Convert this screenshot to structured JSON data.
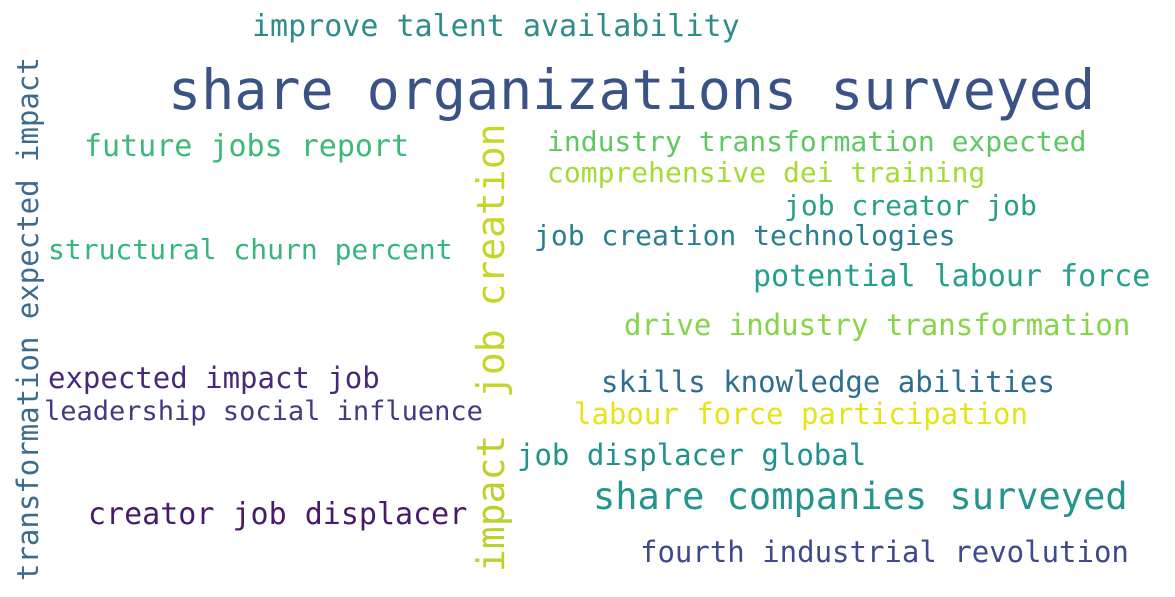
{
  "words": [
    {
      "id": "w01",
      "text": "share organizations surveyed",
      "color": "#3b5286"
    },
    {
      "id": "w02",
      "text": "improve talent availability",
      "color": "#2e8c8a"
    },
    {
      "id": "w03",
      "text": "transformation expected impact",
      "color": "#3d6b8e"
    },
    {
      "id": "w04",
      "text": "future jobs report",
      "color": "#3aba76"
    },
    {
      "id": "w05",
      "text": "job creation",
      "color": "#c6d627"
    },
    {
      "id": "w06",
      "text": "impact",
      "color": "#bcd12c"
    },
    {
      "id": "w07",
      "text": "industry transformation expected",
      "color": "#5ec962"
    },
    {
      "id": "w08",
      "text": "comprehensive dei training",
      "color": "#a5db36"
    },
    {
      "id": "w09",
      "text": "job creator job",
      "color": "#27a083"
    },
    {
      "id": "w10",
      "text": "job creation technologies",
      "color": "#2a7e8e"
    },
    {
      "id": "w11",
      "text": "structural churn percent",
      "color": "#35b779"
    },
    {
      "id": "w12",
      "text": "potential labour force",
      "color": "#24a08b"
    },
    {
      "id": "w13",
      "text": "drive industry transformation",
      "color": "#86d549"
    },
    {
      "id": "w14",
      "text": "expected impact job",
      "color": "#482878"
    },
    {
      "id": "w15",
      "text": "skills knowledge abilities",
      "color": "#2e6e8e"
    },
    {
      "id": "w16",
      "text": "leadership social influence",
      "color": "#443983"
    },
    {
      "id": "w17",
      "text": "labour force participation",
      "color": "#e5e419"
    },
    {
      "id": "w18",
      "text": "job displacer global",
      "color": "#21918c"
    },
    {
      "id": "w19",
      "text": "share companies surveyed",
      "color": "#25948d"
    },
    {
      "id": "w20",
      "text": "creator job displacer",
      "color": "#481a6c"
    },
    {
      "id": "w21",
      "text": "fourth industrial revolution",
      "color": "#3e4a89"
    }
  ]
}
